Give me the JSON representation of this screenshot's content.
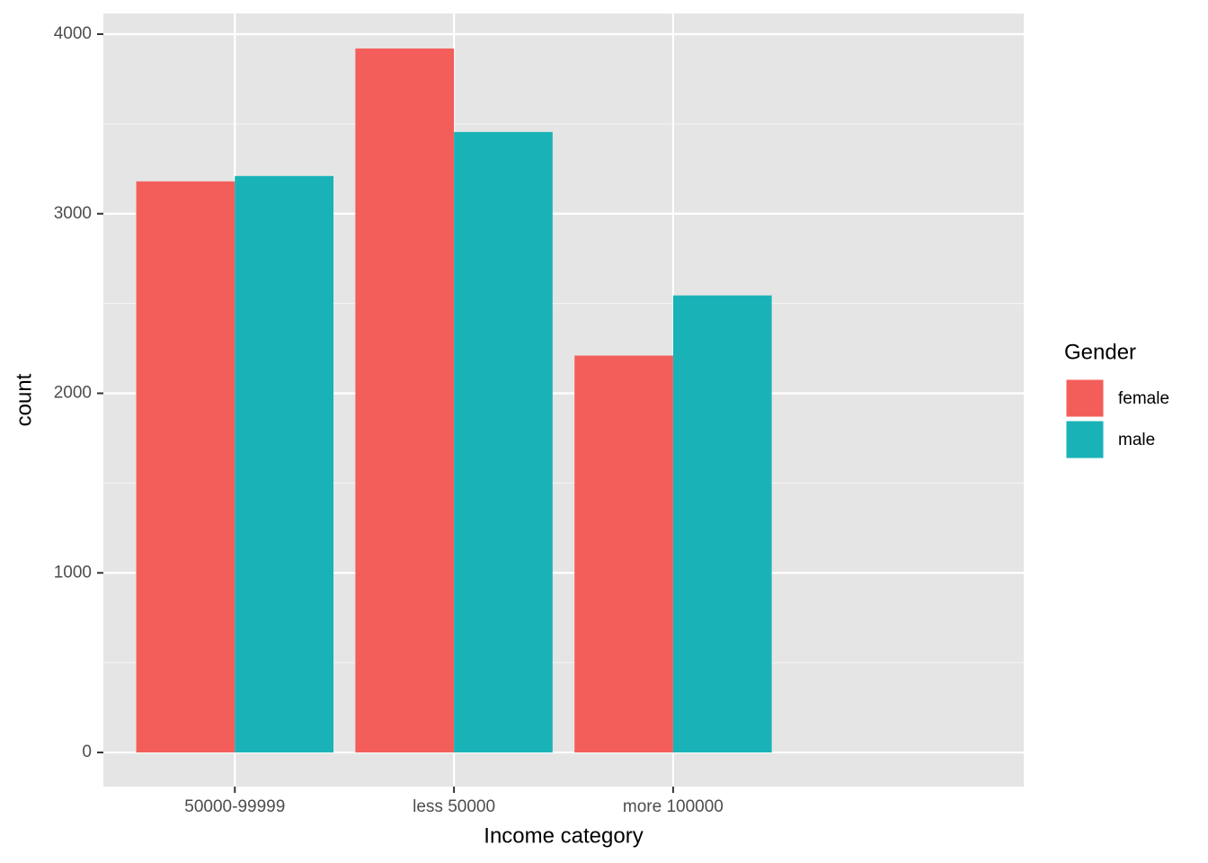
{
  "chart_data": {
    "type": "bar",
    "x_label": "Income category",
    "y_label": "count",
    "legend_title": "Gender",
    "categories": [
      "50000-99999",
      "less 50000",
      "more 100000"
    ],
    "series": [
      {
        "name": "female",
        "color": "#f35e5a",
        "values": [
          3180,
          3920,
          2210
        ]
      },
      {
        "name": "male",
        "color": "#19b3b7",
        "values": [
          3210,
          3455,
          2545
        ]
      }
    ],
    "ylim": [
      -190,
      4115
    ],
    "yticks": [
      0,
      1000,
      2000,
      3000,
      4000
    ],
    "minor_yticks": [
      500,
      1500,
      2500,
      3500
    ],
    "grid": true,
    "legend": "right"
  }
}
